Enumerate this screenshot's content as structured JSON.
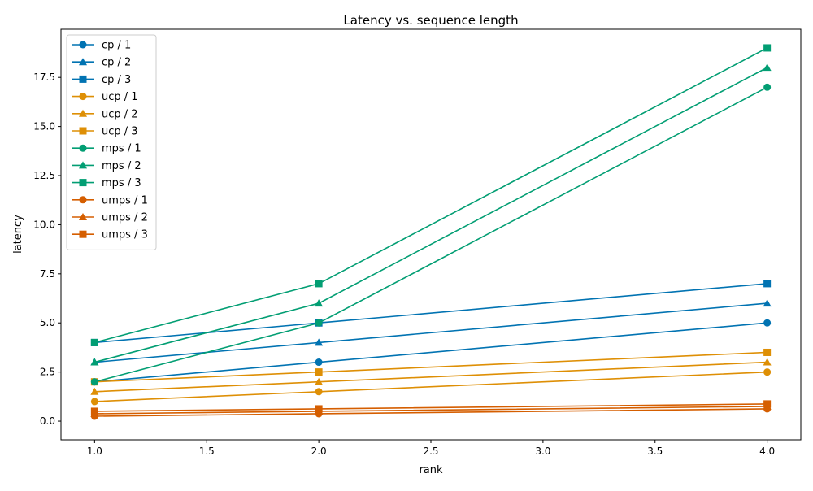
{
  "chart_data": {
    "type": "line",
    "title": "Latency vs. sequence length",
    "xlabel": "rank",
    "ylabel": "latency",
    "xlim": [
      0.85,
      4.15
    ],
    "ylim": [
      -0.95,
      19.95
    ],
    "x": [
      1,
      2,
      4
    ],
    "x_ticks": [
      1.0,
      1.5,
      2.0,
      2.5,
      3.0,
      3.5,
      4.0
    ],
    "x_tick_labels": [
      "1.0",
      "1.5",
      "2.0",
      "2.5",
      "3.0",
      "3.5",
      "4.0"
    ],
    "y_ticks": [
      0.0,
      2.5,
      5.0,
      7.5,
      10.0,
      12.5,
      15.0,
      17.5
    ],
    "y_tick_labels": [
      "0.0",
      "2.5",
      "5.0",
      "7.5",
      "10.0",
      "12.5",
      "15.0",
      "17.5"
    ],
    "grid": false,
    "legend_position": "top-left",
    "series": [
      {
        "name": "cp / 1",
        "color": "#0173b2",
        "marker": "circle",
        "values": [
          2,
          3,
          5
        ]
      },
      {
        "name": "cp / 2",
        "color": "#0173b2",
        "marker": "triangle",
        "values": [
          3,
          4,
          6
        ]
      },
      {
        "name": "cp / 3",
        "color": "#0173b2",
        "marker": "square",
        "values": [
          4,
          5,
          7
        ]
      },
      {
        "name": "ucp / 1",
        "color": "#de8f05",
        "marker": "circle",
        "values": [
          1,
          1.5,
          2.5
        ]
      },
      {
        "name": "ucp / 2",
        "color": "#de8f05",
        "marker": "triangle",
        "values": [
          1.5,
          2,
          3
        ]
      },
      {
        "name": "ucp / 3",
        "color": "#de8f05",
        "marker": "square",
        "values": [
          2,
          2.5,
          3.5
        ]
      },
      {
        "name": "mps / 1",
        "color": "#029e73",
        "marker": "circle",
        "values": [
          2,
          5,
          17
        ]
      },
      {
        "name": "mps / 2",
        "color": "#029e73",
        "marker": "triangle",
        "values": [
          3,
          6,
          18
        ]
      },
      {
        "name": "mps / 3",
        "color": "#029e73",
        "marker": "square",
        "values": [
          4,
          7,
          19
        ]
      },
      {
        "name": "umps / 1",
        "color": "#d55e00",
        "marker": "circle",
        "values": [
          0.25,
          0.375,
          0.625
        ]
      },
      {
        "name": "umps / 2",
        "color": "#d55e00",
        "marker": "triangle",
        "values": [
          0.375,
          0.5,
          0.75
        ]
      },
      {
        "name": "umps / 3",
        "color": "#d55e00",
        "marker": "square",
        "values": [
          0.5,
          0.625,
          0.875
        ]
      }
    ]
  }
}
